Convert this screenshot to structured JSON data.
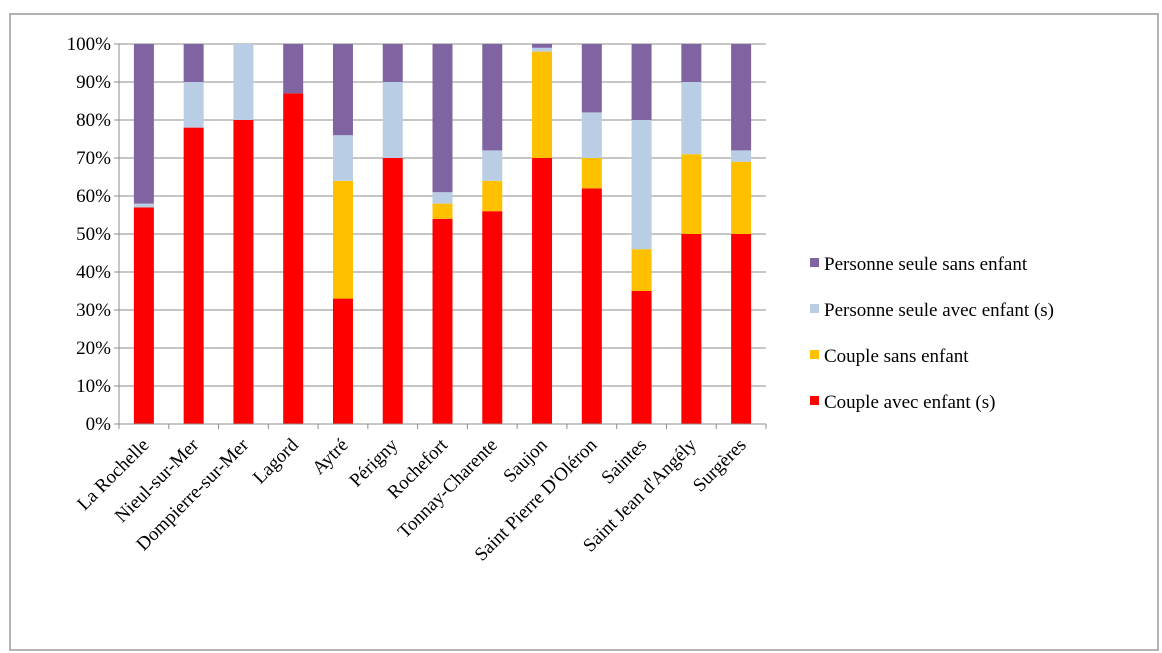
{
  "chart_data": {
    "type": "bar",
    "stacked": true,
    "normalized_percent": true,
    "categories": [
      "La Rochelle",
      "Nieul-sur-Mer",
      "Dompierre-sur-Mer",
      "Lagord",
      "Aytré",
      "Périgny",
      "Rochefort",
      "Tonnay-Charente",
      "Saujon",
      "Saint Pierre D'Oléron",
      "Saintes",
      "Saint Jean d'Angély",
      "Surgères"
    ],
    "series": [
      {
        "name": "Couple avec enfant (s)",
        "color": "#ff0000",
        "values": [
          57,
          78,
          80,
          87,
          33,
          70,
          54,
          56,
          70,
          62,
          35,
          50,
          50
        ]
      },
      {
        "name": "Couple sans enfant",
        "color": "#ffc000",
        "values": [
          0,
          0,
          0,
          0,
          31,
          0,
          4,
          8,
          28,
          8,
          11,
          21,
          19
        ]
      },
      {
        "name": "Personne seule avec enfant (s)",
        "color": "#b9cde5",
        "values": [
          1,
          12,
          20,
          0,
          12,
          20,
          3,
          8,
          1,
          12,
          34,
          19,
          3
        ]
      },
      {
        "name": "Personne seule sans enfant",
        "color": "#8064a2",
        "values": [
          42,
          10,
          0,
          13,
          24,
          10,
          39,
          28,
          1,
          18,
          20,
          10,
          28
        ]
      }
    ],
    "legend_order": [
      "Personne seule sans enfant",
      "Personne seule avec enfant (s)",
      "Couple sans enfant",
      "Couple avec enfant (s)"
    ],
    "y_ticks": [
      "0%",
      "10%",
      "20%",
      "30%",
      "40%",
      "50%",
      "60%",
      "70%",
      "80%",
      "90%",
      "100%"
    ],
    "ylim": [
      0,
      100
    ],
    "grid": true,
    "legend_position": "right",
    "title": "",
    "xlabel": "",
    "ylabel": ""
  }
}
